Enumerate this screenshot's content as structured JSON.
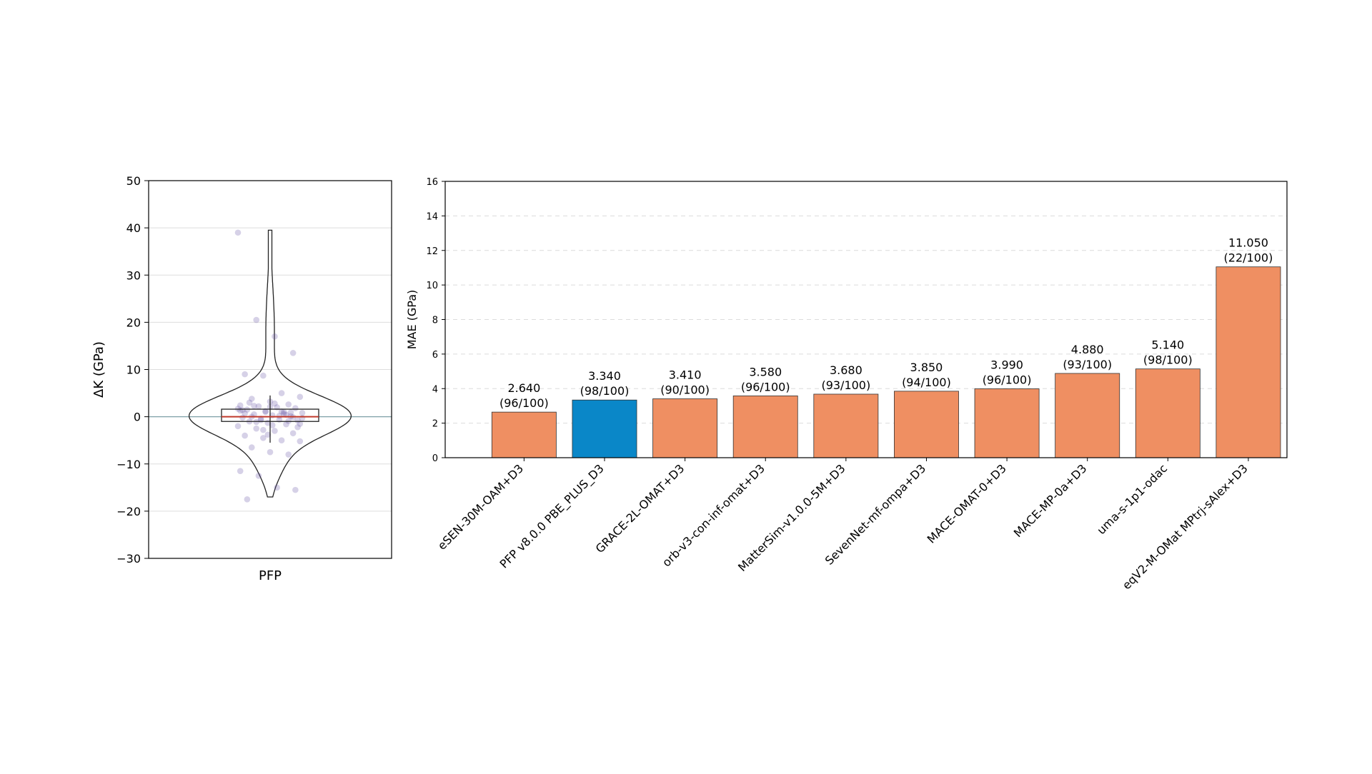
{
  "chart_data": [
    {
      "type": "violin",
      "category": "PFP",
      "ylabel": "ΔK (GPa)",
      "ylim": [
        -30,
        50
      ],
      "yticks": [
        "−30",
        "−20",
        "−10",
        "0",
        "10",
        "20",
        "30",
        "40",
        "50"
      ],
      "grid": "horizontal",
      "reference_line": 0,
      "box": {
        "q1": -1,
        "median": 0,
        "q3": 1.6,
        "whisker_low": -5.5,
        "whisker_high": 4.5
      },
      "violin_extent": [
        -17,
        39.5
      ],
      "points": [
        39,
        20.5,
        17,
        13.5,
        9,
        8.7,
        5,
        4.2,
        3.8,
        3.2,
        2.6,
        2.4,
        2.2,
        2.0,
        1.8,
        1.5,
        1.2,
        1.0,
        0.8,
        0.5,
        0.3,
        0.1,
        -0.2,
        -0.4,
        -0.6,
        -0.8,
        -1.0,
        -1.3,
        -1.6,
        -2.0,
        -2.5,
        -3.0,
        -3.5,
        -4.0,
        -4.5,
        -5.0,
        -5.2,
        -6.5,
        -7.5,
        -8.0,
        -11.5,
        -12.5,
        -15.0,
        -15.5,
        -17.5,
        1.0,
        0.6,
        -0.3,
        2.3,
        -1.8,
        0.9,
        1.4,
        -0.7,
        0.2,
        -2.2,
        3.0,
        -3.8,
        0.4,
        1.7,
        -1.1,
        2.8,
        -0.1,
        0.7,
        -2.8,
        1.1,
        -1.5,
        0.0,
        2.1,
        -0.9,
        1.3
      ],
      "colors": {
        "points": "#6a5aa8",
        "box": "#222222",
        "median": "#c0392b",
        "zero_line": "#7fa0a8"
      }
    },
    {
      "type": "bar",
      "ylabel": "MAE (GPa)",
      "ylim": [
        0,
        16
      ],
      "yticks": [
        "0",
        "2",
        "4",
        "6",
        "8",
        "10",
        "12",
        "14",
        "16"
      ],
      "grid": "horizontal-dashed",
      "categories": [
        "eSEN-30M-OAM+D3",
        "PFP v8.0.0 PBE_PLUS_D3",
        "GRACE-2L-OMAT+D3",
        "orb-v3-con-inf-omat+D3",
        "MatterSim-v1.0.0-5M+D3",
        "SevenNet-mf-ompa+D3",
        "MACE-OMAT-0+D3",
        "MACE-MP-0a+D3",
        "uma-s-1p1-odac",
        "eqV2-M-OMat MPtrj-sAlex+D3"
      ],
      "values": [
        2.64,
        3.34,
        3.41,
        3.58,
        3.68,
        3.85,
        3.99,
        4.88,
        5.14,
        11.05
      ],
      "value_labels": [
        "2.640",
        "3.340",
        "3.410",
        "3.580",
        "3.680",
        "3.850",
        "3.990",
        "4.880",
        "5.140",
        "11.050"
      ],
      "count_labels": [
        "(96/100)",
        "(98/100)",
        "(90/100)",
        "(96/100)",
        "(93/100)",
        "(94/100)",
        "(96/100)",
        "(93/100)",
        "(98/100)",
        "(22/100)"
      ],
      "highlight_index": 1,
      "colors": {
        "default": "#ef8f62",
        "highlight": "#0a87c8",
        "edge": "#333333"
      }
    }
  ]
}
